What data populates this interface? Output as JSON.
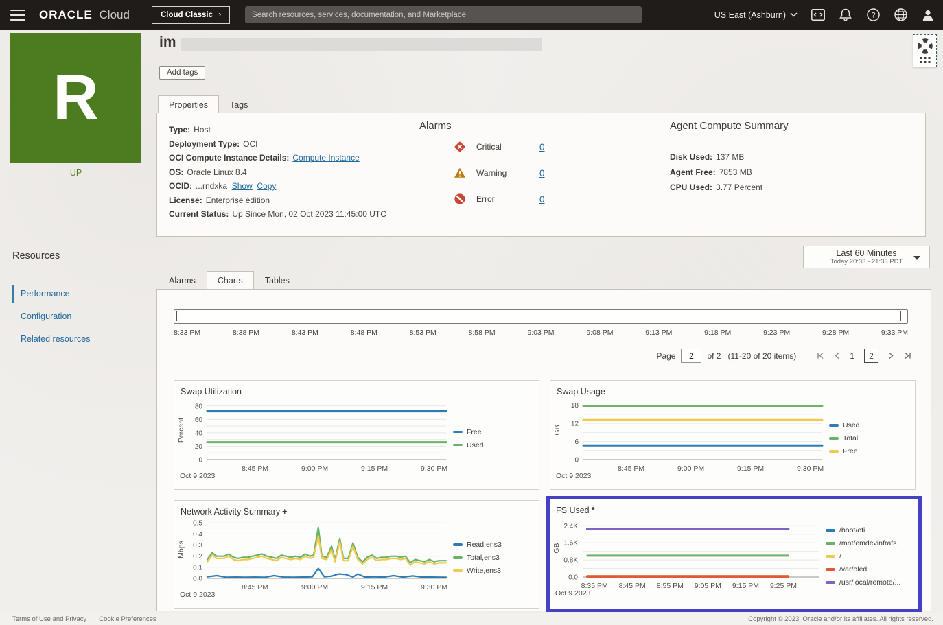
{
  "topbar": {
    "brand_bold": "ORACLE",
    "brand_light": "Cloud",
    "classic_button": "Cloud Classic",
    "classic_chevron": "›",
    "search_placeholder": "Search resources, services, documentation, and Marketplace",
    "region": "US East (Ashburn)"
  },
  "icons": {
    "menu-icon": "hamburger lines",
    "console-icon": "box with <>",
    "notifications-icon": "bell",
    "help-icon": "circled question mark",
    "language-icon": "globe",
    "user-icon": "person silhouette",
    "critical-icon": "red diamond with white x",
    "warning-icon": "amber triangle with exclamation",
    "error-icon": "red circle with slash",
    "support-widget-icon": "life preserver ring with dot grid"
  },
  "colors": {
    "status_up_green": "#4c7c1f",
    "critical_red": "#c74634",
    "warning_amber": "#bc7c11",
    "error_red": "#c74634",
    "link_blue": "#22699c",
    "highlight_border": "#4541c5"
  },
  "sidebar": {
    "status_letter": "R",
    "status": "UP",
    "heading": "Resources",
    "items": [
      {
        "label": "Performance"
      },
      {
        "label": "Configuration"
      },
      {
        "label": "Related resources"
      }
    ]
  },
  "header": {
    "title": "im",
    "add_tags": "Add tags",
    "tabs": [
      "Properties",
      "Tags"
    ]
  },
  "properties": {
    "fields": [
      {
        "label": "Type:",
        "value": "Host"
      },
      {
        "label": "Deployment Type:",
        "value": "OCI"
      },
      {
        "label": "OCI Compute Instance Details:",
        "link": "Compute Instance"
      },
      {
        "label": "OS:",
        "value": "Oracle Linux 8.4"
      },
      {
        "label": "OCID:",
        "value": "...rndxka",
        "show": "Show",
        "copy": "Copy"
      },
      {
        "label": "License:",
        "value": "Enterprise edition"
      },
      {
        "label": "Current Status:",
        "value": "Up Since Mon, 02 Oct 2023 11:45:00 UTC"
      }
    ]
  },
  "alarms": {
    "heading": "Alarms",
    "rows": [
      {
        "severity": "Critical",
        "count": "0"
      },
      {
        "severity": "Warning",
        "count": "0"
      },
      {
        "severity": "Error",
        "count": "0"
      }
    ]
  },
  "agent_summary": {
    "heading": "Agent Compute Summary",
    "rows": [
      {
        "label": "Disk Used:",
        "value": "137 MB"
      },
      {
        "label": "Agent Free:",
        "value": "7853 MB"
      },
      {
        "label": "CPU Used:",
        "value": "3.77 Percent"
      }
    ]
  },
  "time_selector": {
    "label": "Last 60 Minutes",
    "sublabel": "Today 20:33 - 21:33 PDT"
  },
  "content_tabs": [
    "Alarms",
    "Charts",
    "Tables"
  ],
  "slider_times": [
    "8:33 PM",
    "8:38 PM",
    "8:43 PM",
    "8:48 PM",
    "8:53 PM",
    "8:58 PM",
    "9:03 PM",
    "9:08 PM",
    "9:13 PM",
    "9:18 PM",
    "9:23 PM",
    "9:28 PM",
    "9:33 PM"
  ],
  "pagination": {
    "page_label": "Page",
    "current": "2",
    "of_label": "of 2",
    "items_label": "(11-20 of 20 items)",
    "page1": "1",
    "page2": "2"
  },
  "footer": {
    "links": [
      "Terms of Use and Privacy",
      "Cookie Preferences"
    ],
    "copyright": "Copyright © 2023, Oracle and/or its affiliates. All rights reserved."
  },
  "chart_data": [
    {
      "type": "line",
      "title": "Swap Utilization",
      "title_suffix": "",
      "ylabel": "Percent",
      "ylim": [
        0,
        88
      ],
      "y_minor_step": 10,
      "y_ticks": [
        {
          "v": 0,
          "label": "0"
        },
        {
          "v": 20,
          "label": "20"
        },
        {
          "v": 40,
          "label": "40"
        },
        {
          "v": 60,
          "label": "60"
        },
        {
          "v": 80,
          "label": "80"
        }
      ],
      "x_ticks": [
        {
          "pos": 0.2,
          "label": "8:45 PM"
        },
        {
          "pos": 0.45,
          "label": "9:00 PM"
        },
        {
          "pos": 0.7,
          "label": "9:15 PM"
        },
        {
          "pos": 0.95,
          "label": "9:30 PM"
        }
      ],
      "date": "Oct 9 2023",
      "legend_position": "right",
      "grid": true,
      "series": [
        {
          "name": "Free",
          "color": "#2e7cb5",
          "width": 3,
          "points": [
            [
              0,
              73
            ],
            [
              1,
              73
            ]
          ]
        },
        {
          "name": "Used",
          "color": "#6bb269",
          "width": 3,
          "points": [
            [
              0,
              26
            ],
            [
              1,
              26
            ]
          ]
        }
      ]
    },
    {
      "type": "line",
      "title": "Swap Usage",
      "title_suffix": "",
      "ylabel": "GB",
      "ylim": [
        0,
        19.5
      ],
      "y_minor_step": 3,
      "y_ticks": [
        {
          "v": 0,
          "label": "0"
        },
        {
          "v": 6,
          "label": "6"
        },
        {
          "v": 12,
          "label": "12"
        },
        {
          "v": 18,
          "label": "18"
        }
      ],
      "x_ticks": [
        {
          "pos": 0.2,
          "label": "8:45 PM"
        },
        {
          "pos": 0.45,
          "label": "9:00 PM"
        },
        {
          "pos": 0.7,
          "label": "9:15 PM"
        },
        {
          "pos": 0.95,
          "label": "9:30 PM"
        }
      ],
      "date": "Oct 9 2023",
      "legend_position": "right",
      "grid": true,
      "series": [
        {
          "name": "Used",
          "color": "#2e7cb5",
          "width": 3,
          "points": [
            [
              0,
              4.7
            ],
            [
              1,
              4.7
            ]
          ]
        },
        {
          "name": "Total",
          "color": "#6bb269",
          "width": 3,
          "points": [
            [
              0,
              17.8
            ],
            [
              1,
              17.8
            ]
          ]
        },
        {
          "name": "Free",
          "color": "#f0c94f",
          "width": 3,
          "points": [
            [
              0,
              13.1
            ],
            [
              1,
              13.1
            ]
          ]
        }
      ]
    },
    {
      "type": "line",
      "title": "Network Activity Summary",
      "title_suffix": "+",
      "ylabel": "Mbps",
      "ylim": [
        0,
        0.52
      ],
      "y_minor_step": 0.1,
      "y_ticks": [
        {
          "v": 0,
          "label": "0.0"
        },
        {
          "v": 0.1,
          "label": "0.1"
        },
        {
          "v": 0.2,
          "label": "0.2"
        },
        {
          "v": 0.3,
          "label": "0.3"
        },
        {
          "v": 0.4,
          "label": "0.4"
        },
        {
          "v": 0.5,
          "label": "0.5"
        }
      ],
      "x_ticks": [
        {
          "pos": 0.2,
          "label": "8:45 PM"
        },
        {
          "pos": 0.45,
          "label": "9:00 PM"
        },
        {
          "pos": 0.7,
          "label": "9:15 PM"
        },
        {
          "pos": 0.95,
          "label": "9:30 PM"
        }
      ],
      "date": "Oct 9 2023",
      "legend_position": "right",
      "grid": true,
      "series": [
        {
          "name": "Read,ens3",
          "color": "#2e7cb5",
          "width": 2.2,
          "points": [
            [
              0,
              0.015
            ],
            [
              0.04,
              0.025
            ],
            [
              0.08,
              0.01
            ],
            [
              0.12,
              0.012
            ],
            [
              0.16,
              0.01
            ],
            [
              0.2,
              0.012
            ],
            [
              0.24,
              0.01
            ],
            [
              0.28,
              0.025
            ],
            [
              0.32,
              0.012
            ],
            [
              0.36,
              0.01
            ],
            [
              0.4,
              0.012
            ],
            [
              0.44,
              0.015
            ],
            [
              0.465,
              0.09
            ],
            [
              0.49,
              0.015
            ],
            [
              0.52,
              0.02
            ],
            [
              0.55,
              0.04
            ],
            [
              0.58,
              0.035
            ],
            [
              0.61,
              0.012
            ],
            [
              0.63,
              0.04
            ],
            [
              0.66,
              0.012
            ],
            [
              0.7,
              0.015
            ],
            [
              0.74,
              0.012
            ],
            [
              0.78,
              0.025
            ],
            [
              0.82,
              0.012
            ],
            [
              0.86,
              0.022
            ],
            [
              0.9,
              0.012
            ],
            [
              0.94,
              0.012
            ],
            [
              1,
              0.01
            ]
          ]
        },
        {
          "name": "Total,ens3",
          "color": "#6bb269",
          "width": 2.2,
          "points": [
            [
              0,
              0.17
            ],
            [
              0.02,
              0.23
            ],
            [
              0.04,
              0.2
            ],
            [
              0.07,
              0.2
            ],
            [
              0.09,
              0.22
            ],
            [
              0.11,
              0.19
            ],
            [
              0.13,
              0.18
            ],
            [
              0.15,
              0.19
            ],
            [
              0.17,
              0.19
            ],
            [
              0.19,
              0.2
            ],
            [
              0.21,
              0.21
            ],
            [
              0.23,
              0.22
            ],
            [
              0.25,
              0.2
            ],
            [
              0.27,
              0.19
            ],
            [
              0.29,
              0.18
            ],
            [
              0.31,
              0.21
            ],
            [
              0.33,
              0.2
            ],
            [
              0.35,
              0.19
            ],
            [
              0.37,
              0.2
            ],
            [
              0.39,
              0.19
            ],
            [
              0.41,
              0.22
            ],
            [
              0.43,
              0.2
            ],
            [
              0.445,
              0.21
            ],
            [
              0.465,
              0.46
            ],
            [
              0.48,
              0.2
            ],
            [
              0.5,
              0.19
            ],
            [
              0.52,
              0.29
            ],
            [
              0.535,
              0.17
            ],
            [
              0.555,
              0.36
            ],
            [
              0.57,
              0.18
            ],
            [
              0.59,
              0.18
            ],
            [
              0.61,
              0.32
            ],
            [
              0.63,
              0.19
            ],
            [
              0.65,
              0.15
            ],
            [
              0.67,
              0.19
            ],
            [
              0.69,
              0.21
            ],
            [
              0.71,
              0.18
            ],
            [
              0.73,
              0.19
            ],
            [
              0.75,
              0.19
            ],
            [
              0.77,
              0.2
            ],
            [
              0.79,
              0.2
            ],
            [
              0.81,
              0.19
            ],
            [
              0.83,
              0.2
            ],
            [
              0.85,
              0.14
            ],
            [
              0.87,
              0.17
            ],
            [
              0.89,
              0.16
            ],
            [
              0.91,
              0.15
            ],
            [
              0.93,
              0.17
            ],
            [
              0.95,
              0.15
            ],
            [
              0.97,
              0.16
            ],
            [
              1,
              0.16
            ]
          ]
        },
        {
          "name": "Write,ens3",
          "color": "#f0c94f",
          "width": 2.2,
          "points": [
            [
              0,
              0.15
            ],
            [
              0.02,
              0.21
            ],
            [
              0.04,
              0.18
            ],
            [
              0.07,
              0.18
            ],
            [
              0.09,
              0.2
            ],
            [
              0.11,
              0.17
            ],
            [
              0.13,
              0.16
            ],
            [
              0.15,
              0.17
            ],
            [
              0.17,
              0.17
            ],
            [
              0.19,
              0.18
            ],
            [
              0.21,
              0.19
            ],
            [
              0.23,
              0.2
            ],
            [
              0.25,
              0.18
            ],
            [
              0.27,
              0.17
            ],
            [
              0.29,
              0.16
            ],
            [
              0.31,
              0.19
            ],
            [
              0.33,
              0.18
            ],
            [
              0.35,
              0.17
            ],
            [
              0.37,
              0.18
            ],
            [
              0.39,
              0.17
            ],
            [
              0.41,
              0.2
            ],
            [
              0.43,
              0.18
            ],
            [
              0.445,
              0.19
            ],
            [
              0.465,
              0.38
            ],
            [
              0.48,
              0.18
            ],
            [
              0.5,
              0.17
            ],
            [
              0.52,
              0.26
            ],
            [
              0.535,
              0.15
            ],
            [
              0.555,
              0.33
            ],
            [
              0.57,
              0.16
            ],
            [
              0.59,
              0.16
            ],
            [
              0.61,
              0.29
            ],
            [
              0.63,
              0.17
            ],
            [
              0.65,
              0.13
            ],
            [
              0.67,
              0.17
            ],
            [
              0.69,
              0.19
            ],
            [
              0.71,
              0.16
            ],
            [
              0.73,
              0.17
            ],
            [
              0.75,
              0.17
            ],
            [
              0.77,
              0.18
            ],
            [
              0.79,
              0.18
            ],
            [
              0.81,
              0.17
            ],
            [
              0.83,
              0.18
            ],
            [
              0.85,
              0.12
            ],
            [
              0.87,
              0.15
            ],
            [
              0.89,
              0.14
            ],
            [
              0.91,
              0.13
            ],
            [
              0.93,
              0.15
            ],
            [
              0.95,
              0.13
            ],
            [
              0.97,
              0.14
            ],
            [
              1,
              0.14
            ]
          ]
        }
      ]
    },
    {
      "type": "line",
      "title": "FS Used",
      "title_suffix": "*",
      "ylabel": "GB",
      "ylim": [
        0,
        2700
      ],
      "y_minor_step": 400,
      "y_ticks": [
        {
          "v": 0,
          "label": "0.0"
        },
        {
          "v": 800,
          "label": "0.8K"
        },
        {
          "v": 1600,
          "label": "1.6K"
        },
        {
          "v": 2400,
          "label": "2.4K"
        }
      ],
      "x_ticks": [
        {
          "pos": 0.05,
          "label": "8:35 PM"
        },
        {
          "pos": 0.21,
          "label": "8:45 PM"
        },
        {
          "pos": 0.37,
          "label": "8:55 PM"
        },
        {
          "pos": 0.53,
          "label": "9:05 PM"
        },
        {
          "pos": 0.69,
          "label": "9:15 PM"
        },
        {
          "pos": 0.85,
          "label": "9:25 PM"
        }
      ],
      "date": "Oct 9 2023",
      "legend_position": "right",
      "grid": true,
      "highlighted": true,
      "series": [
        {
          "name": "/boot/efi",
          "color": "#2e7cb5",
          "width": 2,
          "points": [
            [
              0.02,
              8
            ],
            [
              0.87,
              8
            ]
          ]
        },
        {
          "name": "/mnt/emdevinfrafs",
          "color": "#6bb269",
          "width": 3,
          "points": [
            [
              0.02,
              1000
            ],
            [
              0.87,
              1000
            ]
          ]
        },
        {
          "name": "/",
          "color": "#f0c94f",
          "width": 2.5,
          "points": [
            [
              0.02,
              48
            ],
            [
              0.87,
              48
            ]
          ]
        },
        {
          "name": "/var/oled",
          "color": "#e05a38",
          "width": 4,
          "points": [
            [
              0.02,
              22
            ],
            [
              0.87,
              22
            ]
          ]
        },
        {
          "name": "/usr/local/remote/...",
          "color": "#8161c1",
          "width": 4,
          "points": [
            [
              0.02,
              2250
            ],
            [
              0.87,
              2250
            ]
          ]
        }
      ]
    }
  ]
}
